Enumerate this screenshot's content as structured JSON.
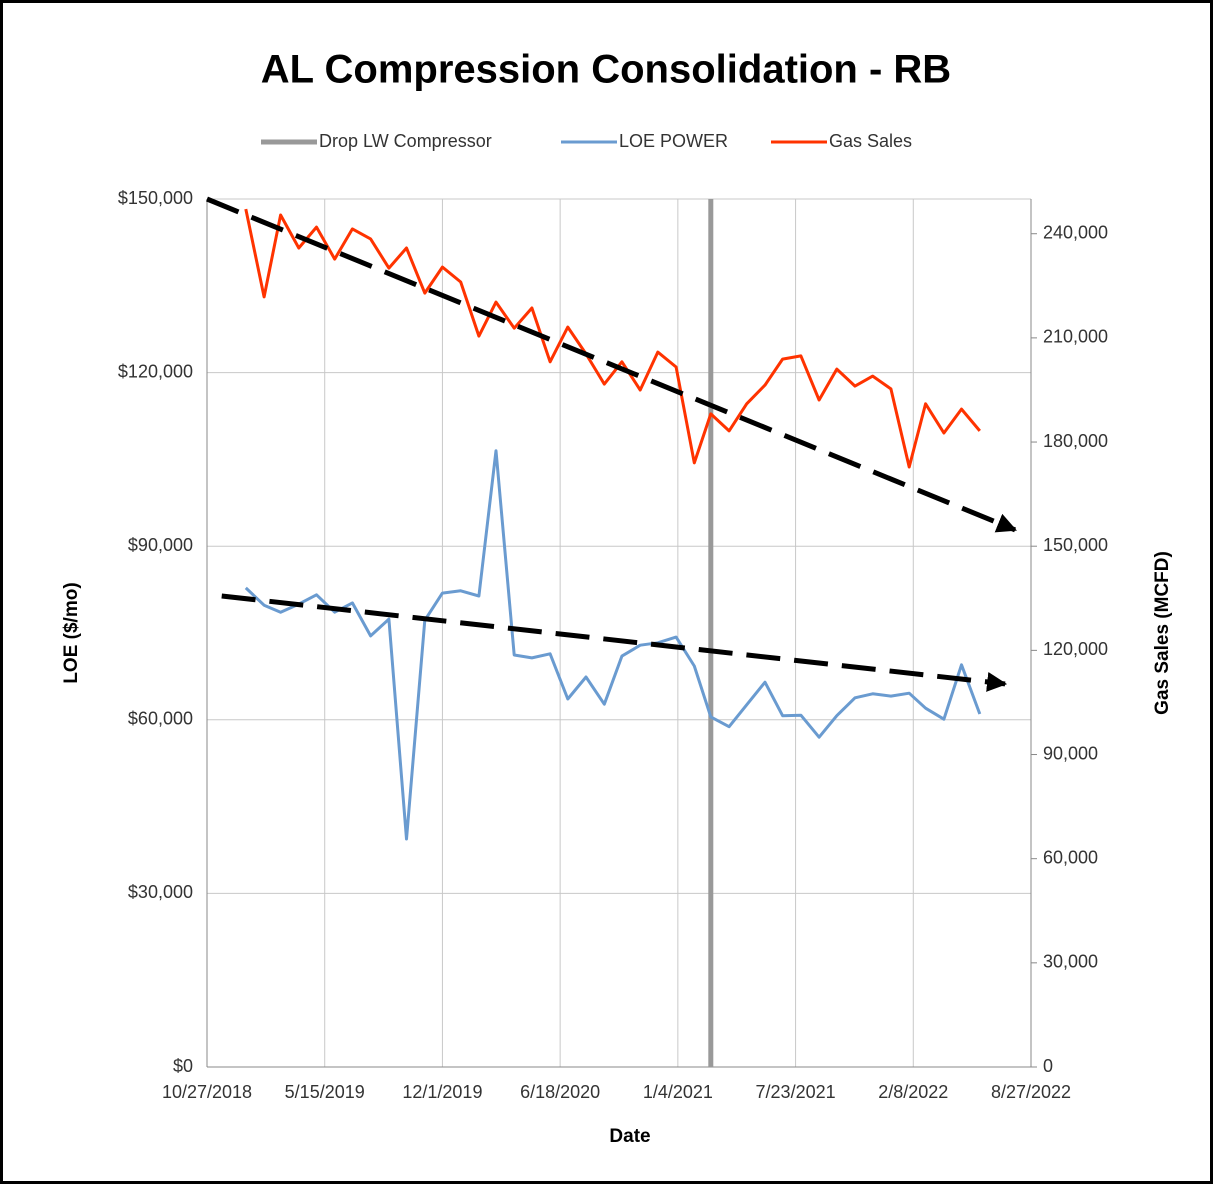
{
  "chart_data": {
    "type": "line",
    "title": "AL Compression Consolidation - RB",
    "x_label": "Date",
    "y_label": "LOE ($/mo)",
    "y2_label": "Gas Sales (MCFD)",
    "xlim": [
      "10/27/2018",
      "8/27/2022"
    ],
    "xticks": [
      "10/27/2018",
      "5/15/2019",
      "12/1/2019",
      "6/18/2020",
      "1/4/2021",
      "7/23/2021",
      "2/8/2022",
      "8/27/2022"
    ],
    "ylim": [
      0,
      150000
    ],
    "yticks": [
      {
        "value": 0,
        "label": "$0"
      },
      {
        "value": 30000,
        "label": "$30,000"
      },
      {
        "value": 60000,
        "label": "$60,000"
      },
      {
        "value": 90000,
        "label": "$90,000"
      },
      {
        "value": 120000,
        "label": "$120,000"
      },
      {
        "value": 150000,
        "label": "$150,000"
      }
    ],
    "y2lim": [
      0,
      250000
    ],
    "y2ticks": [
      0,
      {
        "value": 30000,
        "label": "30,000"
      },
      {
        "value": 60000,
        "label": "60,000"
      },
      {
        "value": 90000,
        "label": "90,000"
      },
      {
        "value": 120000,
        "label": "120,000"
      },
      {
        "value": 150000,
        "label": "150,000"
      },
      {
        "value": 180000,
        "label": "180,000"
      },
      {
        "value": 210000,
        "label": "210,000"
      },
      {
        "value": 240000,
        "label": "240,000"
      }
    ],
    "grid": true,
    "legend": "top",
    "x": [
      "1/1/2019",
      "2/1/2019",
      "3/1/2019",
      "4/1/2019",
      "5/1/2019",
      "6/1/2019",
      "7/1/2019",
      "8/1/2019",
      "9/1/2019",
      "10/1/2019",
      "11/1/2019",
      "12/1/2019",
      "1/1/2020",
      "2/1/2020",
      "3/1/2020",
      "4/1/2020",
      "5/1/2020",
      "6/1/2020",
      "7/1/2020",
      "8/1/2020",
      "9/1/2020",
      "10/1/2020",
      "11/1/2020",
      "12/1/2020",
      "1/1/2021",
      "2/1/2021",
      "3/1/2021",
      "4/1/2021",
      "5/1/2021",
      "6/1/2021",
      "7/1/2021",
      "8/1/2021",
      "9/1/2021",
      "10/1/2021",
      "11/1/2021",
      "12/1/2021",
      "1/1/2022",
      "2/1/2022",
      "3/1/2022",
      "4/1/2022",
      "5/1/2022",
      "6/1/2022"
    ],
    "series": [
      {
        "name": "Drop LW Compressor",
        "color": "#999999",
        "x": [
          "3/1/2021",
          "3/1/2021"
        ],
        "values": [
          0,
          150000
        ]
      },
      {
        "name": "LOE POWER",
        "color": "#6a9bd0",
        "values": [
          82800,
          79800,
          78600,
          80000,
          81600,
          78600,
          80200,
          74500,
          77400,
          39400,
          77200,
          81900,
          82300,
          81400,
          106500,
          71200,
          70700,
          71400,
          63600,
          67400,
          62700,
          71000,
          72900,
          73300,
          74300,
          69300,
          60500,
          58800,
          62600,
          66500,
          60700,
          60800,
          57000,
          60700,
          63800,
          64500,
          64100,
          64600,
          62000,
          60100,
          69500,
          61000
        ]
      },
      {
        "name": "Gas Sales",
        "color": "#ff3300",
        "axis": "y2",
        "values": [
          247100,
          221800,
          245400,
          235900,
          241900,
          232700,
          241400,
          238500,
          230100,
          235900,
          222900,
          230400,
          226100,
          210500,
          220300,
          212800,
          218600,
          203100,
          213100,
          205400,
          196700,
          203100,
          195000,
          205900,
          201600,
          174000,
          188100,
          183200,
          191000,
          196400,
          203900,
          204800,
          192100,
          201000,
          196100,
          199000,
          195300,
          172800,
          191000,
          182600,
          189500,
          183200
        ]
      }
    ],
    "trends": [
      {
        "color": "#000000",
        "axis": "y2",
        "x": [
          "10/27/2018",
          "7/31/2022"
        ],
        "values": [
          250000,
          154700
        ]
      },
      {
        "color": "#000000",
        "x": [
          "11/21/2018",
          "7/14/2022"
        ],
        "values": [
          81400,
          66200
        ]
      }
    ]
  }
}
